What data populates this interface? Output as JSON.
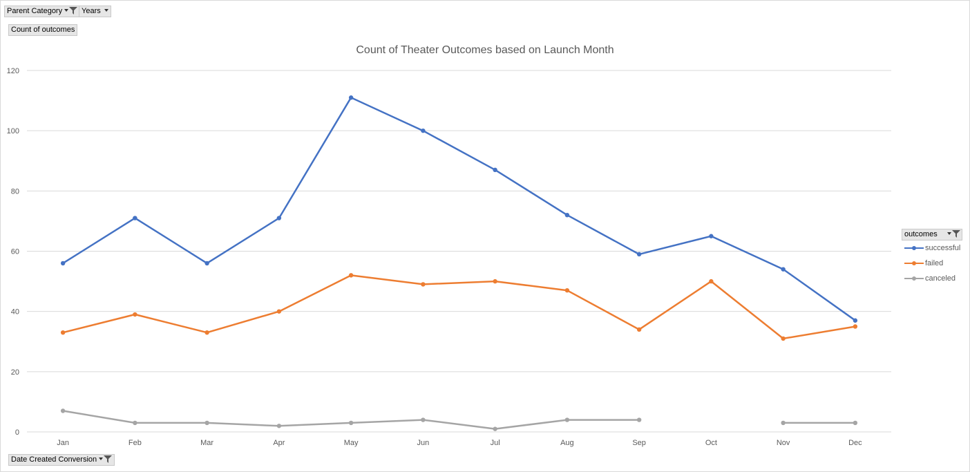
{
  "pivot_fields": {
    "filter_1": "Parent Category",
    "filter_2": "Years",
    "values_field": "Count of outcomes",
    "axis_field": "Date Created Conversion",
    "legend_field": "outcomes"
  },
  "colors": {
    "successful": "#4472c4",
    "failed": "#ed7d31",
    "canceled": "#a5a5a5",
    "gridline": "#d9d9d9"
  },
  "chart_data": {
    "type": "line",
    "title": "Count of Theater Outcomes based on Launch Month",
    "xlabel": "",
    "ylabel": "",
    "categories": [
      "Jan",
      "Feb",
      "Mar",
      "Apr",
      "May",
      "Jun",
      "Jul",
      "Aug",
      "Sep",
      "Oct",
      "Nov",
      "Dec"
    ],
    "ylim": [
      0,
      120
    ],
    "yticks": [
      0,
      20,
      40,
      60,
      80,
      100,
      120
    ],
    "grid": true,
    "legend_position": "right",
    "series": [
      {
        "name": "successful",
        "values": [
          56,
          71,
          56,
          71,
          111,
          100,
          87,
          72,
          59,
          65,
          54,
          37
        ]
      },
      {
        "name": "failed",
        "values": [
          33,
          39,
          33,
          40,
          52,
          49,
          50,
          47,
          34,
          50,
          31,
          35
        ]
      },
      {
        "name": "canceled",
        "values": [
          7,
          3,
          3,
          2,
          3,
          4,
          1,
          4,
          4,
          null,
          3,
          3
        ]
      }
    ]
  }
}
